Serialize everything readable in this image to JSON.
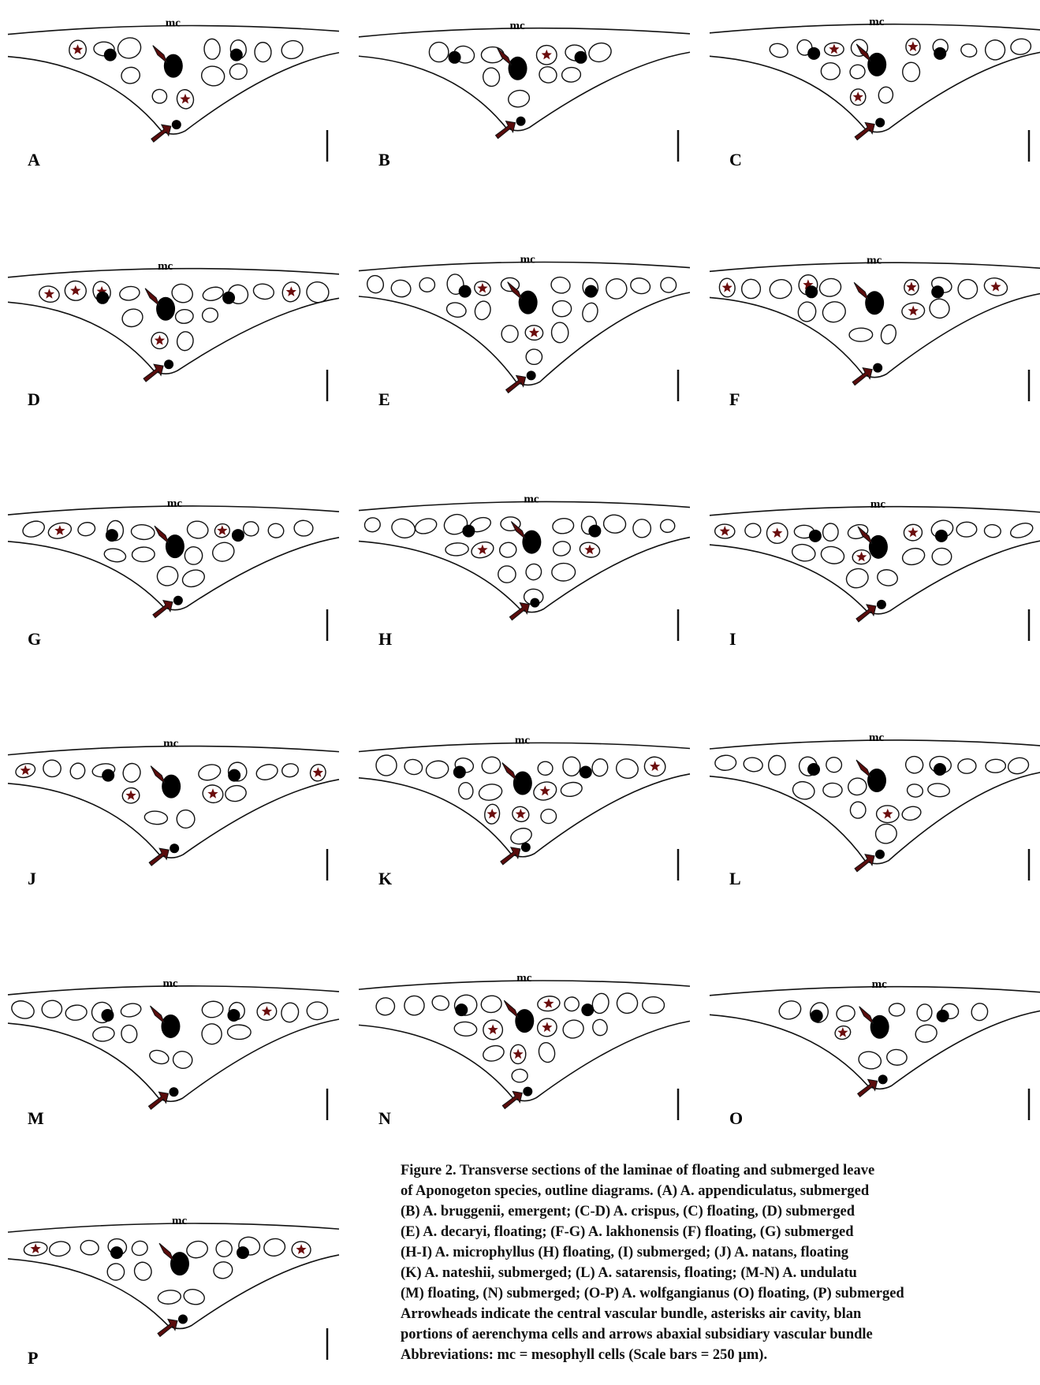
{
  "figure": {
    "panels": [
      {
        "letter": "A",
        "label": "mc"
      },
      {
        "letter": "B",
        "label": "mc"
      },
      {
        "letter": "C",
        "label": "mc"
      },
      {
        "letter": "D",
        "label": "mc"
      },
      {
        "letter": "E",
        "label": "mc"
      },
      {
        "letter": "F",
        "label": "mc"
      },
      {
        "letter": "G",
        "label": "mc"
      },
      {
        "letter": "H",
        "label": "mc"
      },
      {
        "letter": "I",
        "label": "mc"
      },
      {
        "letter": "J",
        "label": "mc"
      },
      {
        "letter": "K",
        "label": "mc"
      },
      {
        "letter": "L",
        "label": "mc"
      },
      {
        "letter": "M",
        "label": "mc"
      },
      {
        "letter": "N",
        "label": "mc"
      },
      {
        "letter": "O",
        "label": "mc"
      },
      {
        "letter": "P",
        "label": "mc"
      }
    ],
    "caption": [
      "Figure 2. Transverse sections of the laminae of floating and submerged leave",
      "of Aponogeton species, outline diagrams. (A) A. appendiculatus, submerged",
      "(B) A. bruggenii, emergent; (C-D) A. crispus, (C) floating, (D) submerged",
      "(E) A. decaryi, floating; (F-G) A. lakhonensis (F) floating, (G) submerged",
      "(H-I) A. microphyllus (H) floating, (I) submerged; (J) A. natans, floating",
      "(K) A. nateshii, submerged; (L) A. satarensis, floating; (M-N) A. undulatu",
      "(M) floating, (N) submerged; (O-P) A. wolfgangianus (O) floating, (P) submerged",
      "Arrowheads indicate the central vascular bundle, asterisks air cavity, blan",
      "portions of aerenchyma cells and arrows abaxial subsidiary vascular bundle",
      "Abbreviations: mc = mesophyll cells (Scale bars = 250 µm)."
    ]
  }
}
